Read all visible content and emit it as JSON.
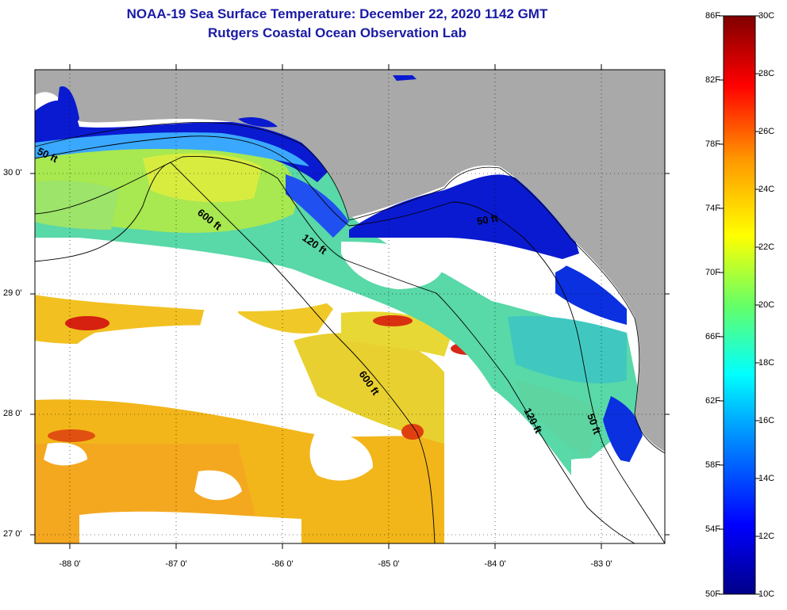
{
  "title_line1": "NOAA-19 Sea Surface Temperature:  December 22, 2020 1142 GMT",
  "title_line2": "Rutgers Coastal Ocean Observation Lab",
  "lat_labels": [
    "30 0'",
    "29 0'",
    "28 0'",
    "27 0'"
  ],
  "lon_labels": [
    "-88 0'",
    "-87 0'",
    "-86 0'",
    "-85 0'",
    "-84 0'",
    "-83 0'"
  ],
  "isobath_labels": [
    "50 ft",
    "600 ft",
    "120 ft",
    "50 ft",
    "600 ft",
    "120 ft",
    "50 ft"
  ],
  "colorbar": {
    "f_labels": [
      "86F",
      "82F",
      "78F",
      "74F",
      "70F",
      "66F",
      "62F",
      "58F",
      "54F",
      "50F"
    ],
    "c_labels": [
      "30C",
      "28C",
      "26C",
      "24C",
      "22C",
      "20C",
      "18C",
      "16C",
      "14C",
      "12C",
      "10C"
    ]
  },
  "colors": {
    "land": "#a9a9a9",
    "cloud": "#ffffff",
    "title": "#1a1aa6",
    "warm": "#f5b400",
    "cold": "#0a1ad0"
  }
}
